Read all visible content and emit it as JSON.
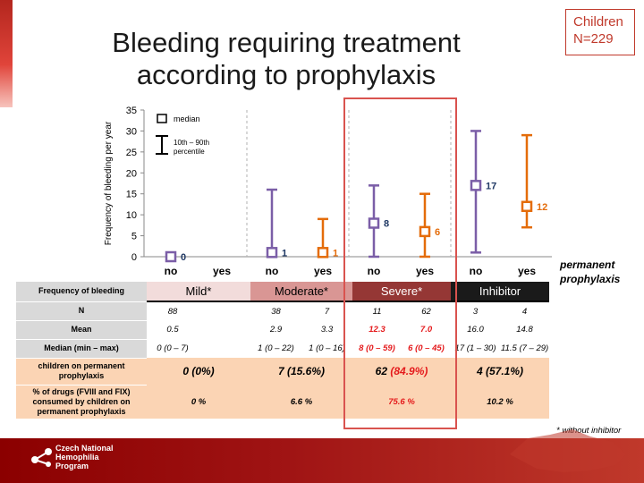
{
  "title": {
    "line1": "Bleeding requiring treatment",
    "line2": "according to prophylaxis"
  },
  "badge": {
    "line1": "Children",
    "line2": "N=229"
  },
  "permanent_label": {
    "line1": "permanent",
    "line2": "prophylaxis"
  },
  "chart_data": {
    "type": "range",
    "ylabel": "Frequency of bleeding per year",
    "ylim": [
      0,
      35
    ],
    "yticks": [
      0,
      5,
      10,
      15,
      20,
      25,
      30,
      35
    ],
    "legend": {
      "median": "median",
      "range_line1": "10th – 90th",
      "range_line2": "percentile"
    },
    "categories": [
      "no",
      "yes",
      "no",
      "yes",
      "no",
      "yes",
      "no",
      "yes"
    ],
    "groups": [
      "Mild*",
      "Moderate*",
      "Severe*",
      "Inhibitor"
    ],
    "points": [
      {
        "group": "Mild*",
        "prophylaxis": "no",
        "median": 0,
        "low": 0,
        "high": 0,
        "label": "0",
        "color": "#7b5ea7"
      },
      {
        "group": "Moderate*",
        "prophylaxis": "no",
        "median": 1,
        "low": 1,
        "high": 16,
        "label": "1",
        "color": "#7b5ea7"
      },
      {
        "group": "Moderate*",
        "prophylaxis": "yes",
        "median": 1,
        "low": 1,
        "high": 9,
        "label": "1",
        "color": "#e46c0a"
      },
      {
        "group": "Severe*",
        "prophylaxis": "no",
        "median": 8,
        "low": 0,
        "high": 17,
        "label": "8",
        "color": "#7b5ea7"
      },
      {
        "group": "Severe*",
        "prophylaxis": "yes",
        "median": 6,
        "low": 0,
        "high": 15,
        "label": "6",
        "color": "#e46c0a"
      },
      {
        "group": "Inhibitor",
        "prophylaxis": "no",
        "median": 17,
        "low": 1,
        "high": 30,
        "label": "17",
        "color": "#7b5ea7"
      },
      {
        "group": "Inhibitor",
        "prophylaxis": "yes",
        "median": 12,
        "low": 7,
        "high": 29,
        "label": "12",
        "color": "#e46c0a"
      }
    ]
  },
  "table": {
    "header_label": "Frequency of bleeding",
    "groups": [
      "Mild*",
      "Moderate*",
      "Severe*",
      "Inhibitor"
    ],
    "rows": {
      "n": {
        "label": "N",
        "values": [
          "88",
          "",
          "38",
          "7",
          "11",
          "62",
          "3",
          "4"
        ]
      },
      "mean": {
        "label": "Mean",
        "values": [
          "0.5",
          "",
          "2.9",
          "3.3",
          "12.3",
          "7.0",
          "16.0",
          "14.8"
        ]
      },
      "median": {
        "label": "Median (min – max)",
        "values": [
          "0 (0 – 7)",
          "",
          "1 (0 – 22)",
          "1 (0 – 16)",
          "8 (0 – 59)",
          "6 (0 – 45)",
          "17 (1 – 30)",
          "11.5 (7 – 29)"
        ]
      },
      "children": {
        "label": "children on permanent prophylaxis",
        "values": [
          "0 (0%)",
          "7 (15.6%)",
          "62",
          "(84.9%)",
          "4 (57.1%)"
        ]
      },
      "drugs": {
        "label": "% of drugs (FVIII and FIX) consumed by children on permanent prophylaxis",
        "values": [
          "0 %",
          "6.6 %",
          "75.6 %",
          "10.2 %"
        ]
      }
    }
  },
  "footnote": "* without inhibitor",
  "footer": {
    "line1": "Czech National",
    "line2": "Hemophilia",
    "line3": "Program"
  },
  "colors": {
    "no": "#7b5ea7",
    "yes": "#e46c0a",
    "highlight": "#d9534f",
    "red_text": "#e41a1c"
  }
}
